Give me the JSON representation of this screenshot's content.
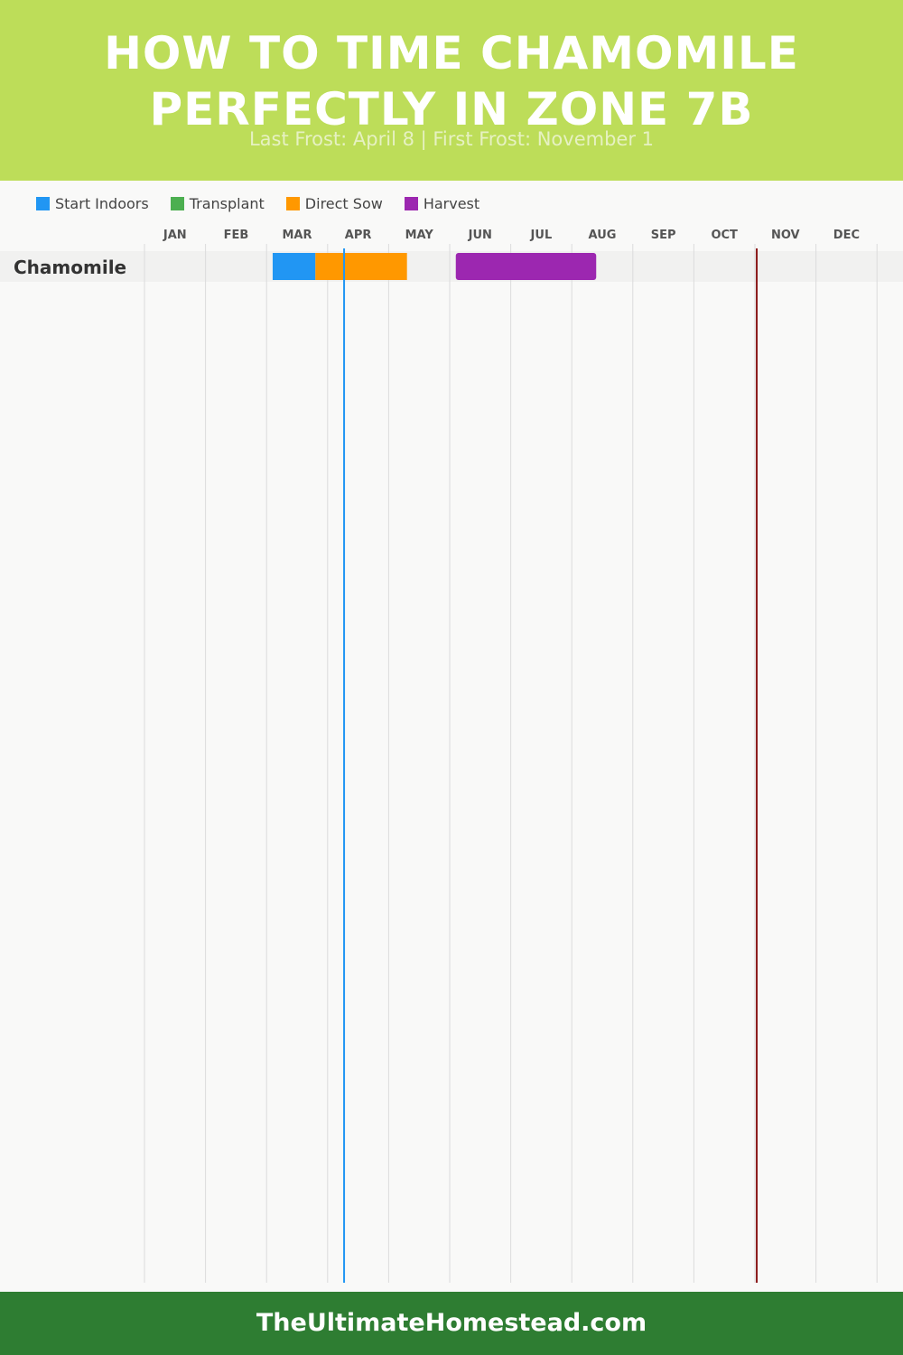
{
  "header": {
    "title": "HOW TO TIME CHAMOMILE PERFECTLY IN ZONE 7B",
    "subtitle": "Last Frost: April 8 | First Frost: November 1"
  },
  "colors": {
    "header_bg": "#bddd59",
    "footer_bg": "#2e7d32",
    "start_indoors": "#2196f3",
    "transplant": "#4caf50",
    "direct_sow": "#ff9800",
    "harvest": "#9c27b0",
    "last_frost_line": "#2196f3",
    "first_frost_line": "#8b1a1a"
  },
  "legend": [
    {
      "label": "Start Indoors",
      "color": "#2196f3"
    },
    {
      "label": "Transplant",
      "color": "#4caf50"
    },
    {
      "label": "Direct Sow",
      "color": "#ff9800"
    },
    {
      "label": "Harvest",
      "color": "#9c27b0"
    }
  ],
  "chart_data": {
    "type": "gantt",
    "months": [
      "JAN",
      "FEB",
      "MAR",
      "APR",
      "MAY",
      "JUN",
      "JUL",
      "AUG",
      "SEP",
      "OCT",
      "NOV",
      "DEC"
    ],
    "rows": [
      {
        "label": "Chamomile",
        "segments": [
          {
            "activity": "Start Indoors",
            "start_month": 3.1,
            "end_month": 3.8
          },
          {
            "activity": "Direct Sow",
            "start_month": 3.8,
            "end_month": 5.3
          },
          {
            "activity": "Harvest",
            "start_month": 6.1,
            "end_month": 8.4
          }
        ]
      }
    ],
    "markers": [
      {
        "name": "Last Frost",
        "month": 4.27,
        "color": "#2196f3"
      },
      {
        "name": "First Frost",
        "month": 11.03,
        "color": "#8b1a1a"
      }
    ],
    "grid": true,
    "legend_position": "top-left"
  },
  "footer": {
    "text": "TheUltimateHomestead.com"
  }
}
